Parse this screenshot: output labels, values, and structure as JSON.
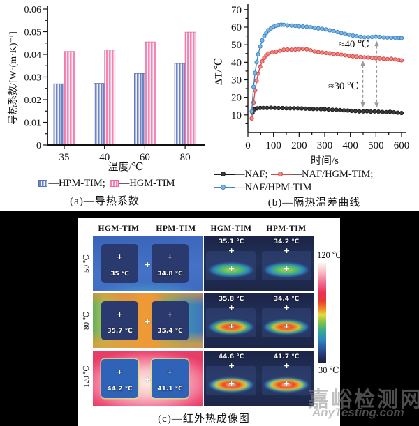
{
  "figure": {
    "caption_a": "(a)—导热系数",
    "caption_b": "(b)—隔热温差曲线"
  },
  "chart_data": [
    {
      "type": "bar",
      "title": "",
      "xlabel": "温度/℃",
      "ylabel": "导热系数/[W·(m·K)⁻¹]",
      "categories": [
        "35",
        "40",
        "60",
        "80"
      ],
      "series": [
        {
          "name": "HPM-TIM",
          "color": "#6d84c3",
          "stripe": "#eef0fa",
          "edge": "#5a72b8",
          "values": [
            0.027,
            0.0272,
            0.0316,
            0.036
          ]
        },
        {
          "name": "HGM-TIM",
          "color": "#f584b3",
          "stripe": "#fdeef5",
          "edge": "#ec6ba4",
          "values": [
            0.0413,
            0.0419,
            0.0455,
            0.0498
          ]
        }
      ],
      "ylim": [
        0,
        0.06
      ],
      "yticks": [
        "0",
        "0.01",
        "0.02",
        "0.03",
        "0.04",
        "0.05",
        "0.06"
      ],
      "grid": false,
      "legend_position": "bottom",
      "legend": [
        {
          "label": "—HPM-TIM;"
        },
        {
          "label": "—HGM-TIM"
        }
      ]
    },
    {
      "type": "line",
      "title": "",
      "xlabel": "时间/s",
      "ylabel": "ΔT/℃",
      "xlim": [
        0,
        600
      ],
      "ylim": [
        0,
        70
      ],
      "xticks": [
        "0",
        "100",
        "200",
        "300",
        "400",
        "500",
        "600"
      ],
      "yticks": [
        "10",
        "20",
        "30",
        "40",
        "50",
        "60",
        "70"
      ],
      "grid": false,
      "legend_position": "bottom",
      "series": [
        {
          "name": "NAF",
          "color": "#1a1a1a",
          "marker": "#3c3c3c",
          "points": [
            [
              18,
              11.2
            ],
            [
              26,
              13.2
            ],
            [
              36,
              13.8
            ],
            [
              48,
              14
            ],
            [
              60,
              14
            ],
            [
              75,
              14
            ],
            [
              90,
              14.1
            ],
            [
              105,
              14
            ],
            [
              120,
              13.9
            ],
            [
              135,
              13.9
            ],
            [
              150,
              13.8
            ],
            [
              165,
              13.8
            ],
            [
              180,
              13.8
            ],
            [
              195,
              13.8
            ],
            [
              210,
              13.7
            ],
            [
              225,
              13.6
            ],
            [
              240,
              13.5
            ],
            [
              255,
              13.4
            ],
            [
              270,
              13.4
            ],
            [
              285,
              13.3
            ],
            [
              300,
              13.3
            ],
            [
              315,
              13.1
            ],
            [
              330,
              13
            ],
            [
              345,
              12.9
            ],
            [
              360,
              12.8
            ],
            [
              375,
              12.6
            ],
            [
              390,
              12.5
            ],
            [
              405,
              12.3
            ],
            [
              420,
              12.2
            ],
            [
              435,
              12
            ],
            [
              450,
              12
            ],
            [
              465,
              12.1
            ],
            [
              480,
              11.9
            ],
            [
              495,
              12
            ],
            [
              510,
              11.9
            ],
            [
              525,
              11.7
            ],
            [
              540,
              11.6
            ],
            [
              555,
              11.8
            ],
            [
              570,
              11.5
            ],
            [
              585,
              11.3
            ],
            [
              600,
              11.1
            ]
          ]
        },
        {
          "name": "NAF/HGM-TIM",
          "color": "#d94a46",
          "marker": "#f08a86",
          "points": [
            [
              15,
              8
            ],
            [
              22,
              17
            ],
            [
              28,
              24
            ],
            [
              34,
              29.5
            ],
            [
              40,
              33.5
            ],
            [
              48,
              37.5
            ],
            [
              56,
              40.5
            ],
            [
              64,
              42.5
            ],
            [
              72,
              44
            ],
            [
              80,
              45
            ],
            [
              95,
              45.6
            ],
            [
              110,
              46
            ],
            [
              125,
              46.6
            ],
            [
              140,
              47.2
            ],
            [
              155,
              47.3
            ],
            [
              170,
              47.2
            ],
            [
              185,
              47.3
            ],
            [
              200,
              47.5
            ],
            [
              215,
              47.7
            ],
            [
              230,
              47.4
            ],
            [
              245,
              46.8
            ],
            [
              260,
              46.3
            ],
            [
              275,
              45.8
            ],
            [
              290,
              45.5
            ],
            [
              305,
              45.3
            ],
            [
              320,
              45.1
            ],
            [
              335,
              44.8
            ],
            [
              350,
              44.6
            ],
            [
              365,
              44.3
            ],
            [
              380,
              44
            ],
            [
              395,
              43.7
            ],
            [
              410,
              43.4
            ],
            [
              425,
              43.2
            ],
            [
              440,
              43
            ],
            [
              455,
              42.8
            ],
            [
              470,
              42.7
            ],
            [
              485,
              42.5
            ],
            [
              500,
              42.3
            ],
            [
              515,
              42.2
            ],
            [
              530,
              42
            ],
            [
              545,
              41.8
            ],
            [
              560,
              42
            ],
            [
              575,
              41.6
            ],
            [
              590,
              41.3
            ],
            [
              600,
              41.1
            ]
          ]
        },
        {
          "name": "NAF/HPM-TIM",
          "color": "#3d86c6",
          "marker": "#7fb6e2",
          "points": [
            [
              15,
              12
            ],
            [
              22,
              26
            ],
            [
              28,
              34
            ],
            [
              34,
              40
            ],
            [
              40,
              44.5
            ],
            [
              48,
              49
            ],
            [
              56,
              52.5
            ],
            [
              64,
              55
            ],
            [
              72,
              56.8
            ],
            [
              80,
              58.2
            ],
            [
              90,
              59.3
            ],
            [
              100,
              60.2
            ],
            [
              110,
              60.8
            ],
            [
              120,
              61.2
            ],
            [
              130,
              61.4
            ],
            [
              140,
              61.3
            ],
            [
              155,
              61
            ],
            [
              170,
              60.9
            ],
            [
              185,
              60.7
            ],
            [
              200,
              60.5
            ],
            [
              215,
              60.4
            ],
            [
              230,
              60.2
            ],
            [
              245,
              59.9
            ],
            [
              260,
              59.6
            ],
            [
              275,
              59.3
            ],
            [
              290,
              59
            ],
            [
              305,
              58.7
            ],
            [
              320,
              58.2
            ],
            [
              335,
              57.7
            ],
            [
              350,
              57.2
            ],
            [
              365,
              56.7
            ],
            [
              380,
              56.2
            ],
            [
              395,
              55.7
            ],
            [
              410,
              55.2
            ],
            [
              425,
              54.8
            ],
            [
              440,
              54.5
            ],
            [
              455,
              54.3
            ],
            [
              470,
              54.3
            ],
            [
              485,
              54.4
            ],
            [
              500,
              54.6
            ],
            [
              515,
              54.4
            ],
            [
              530,
              54.2
            ],
            [
              545,
              54.1
            ],
            [
              560,
              54
            ],
            [
              575,
              54
            ],
            [
              590,
              53.9
            ],
            [
              600,
              53.8
            ]
          ]
        }
      ],
      "annotations": [
        {
          "text": "≈40 ℃",
          "x": 207,
          "y": 68
        },
        {
          "text": "≈30 ℃",
          "x": 192,
          "y": 128
        }
      ],
      "arrows": [
        {
          "t": 449,
          "from": 43,
          "to": 12.2
        },
        {
          "t": 503,
          "from": 54.2,
          "to": 12
        }
      ],
      "legend": [
        {
          "label": "—NAF;"
        },
        {
          "label": "—NAF/HGM-TIM;"
        },
        {
          "label": "—NAF/HPM-TIM"
        }
      ]
    }
  ],
  "panel_c": {
    "column_headers": [
      "HGM-TIM",
      "HPM-TIM",
      "HGM-TIM",
      "HPM-TIM"
    ],
    "row_labels": [
      "50 ℃",
      "80 ℃",
      "120 ℃"
    ],
    "front_views": [
      {
        "row": "50 ℃",
        "left_temp": "35 ℃",
        "right_temp": "34.8 ℃"
      },
      {
        "row": "80 ℃",
        "left_temp": "35.7 ℃",
        "right_temp": "35.4 ℃"
      },
      {
        "row": "120 ℃",
        "left_temp": "44.2 ℃",
        "right_temp": "41.1 ℃"
      }
    ],
    "side_views": [
      {
        "row": "50 ℃",
        "left_temp": "35.1 ℃",
        "right_temp": "34.2 ℃"
      },
      {
        "row": "80 ℃",
        "left_temp": "35.8 ℃",
        "right_temp": "34.4 ℃"
      },
      {
        "row": "120 ℃",
        "left_temp": "44.6 ℃",
        "right_temp": "41.7 ℃"
      }
    ],
    "colorbar": {
      "top_label": "120 ℃",
      "bottom_label": "30 ℃"
    },
    "marker_icon": "crosshair-plus",
    "caption": "(c)—红外热成像图"
  },
  "watermark": {
    "line1": "嘉峪检测网",
    "line2": "AnyTesting.com"
  }
}
